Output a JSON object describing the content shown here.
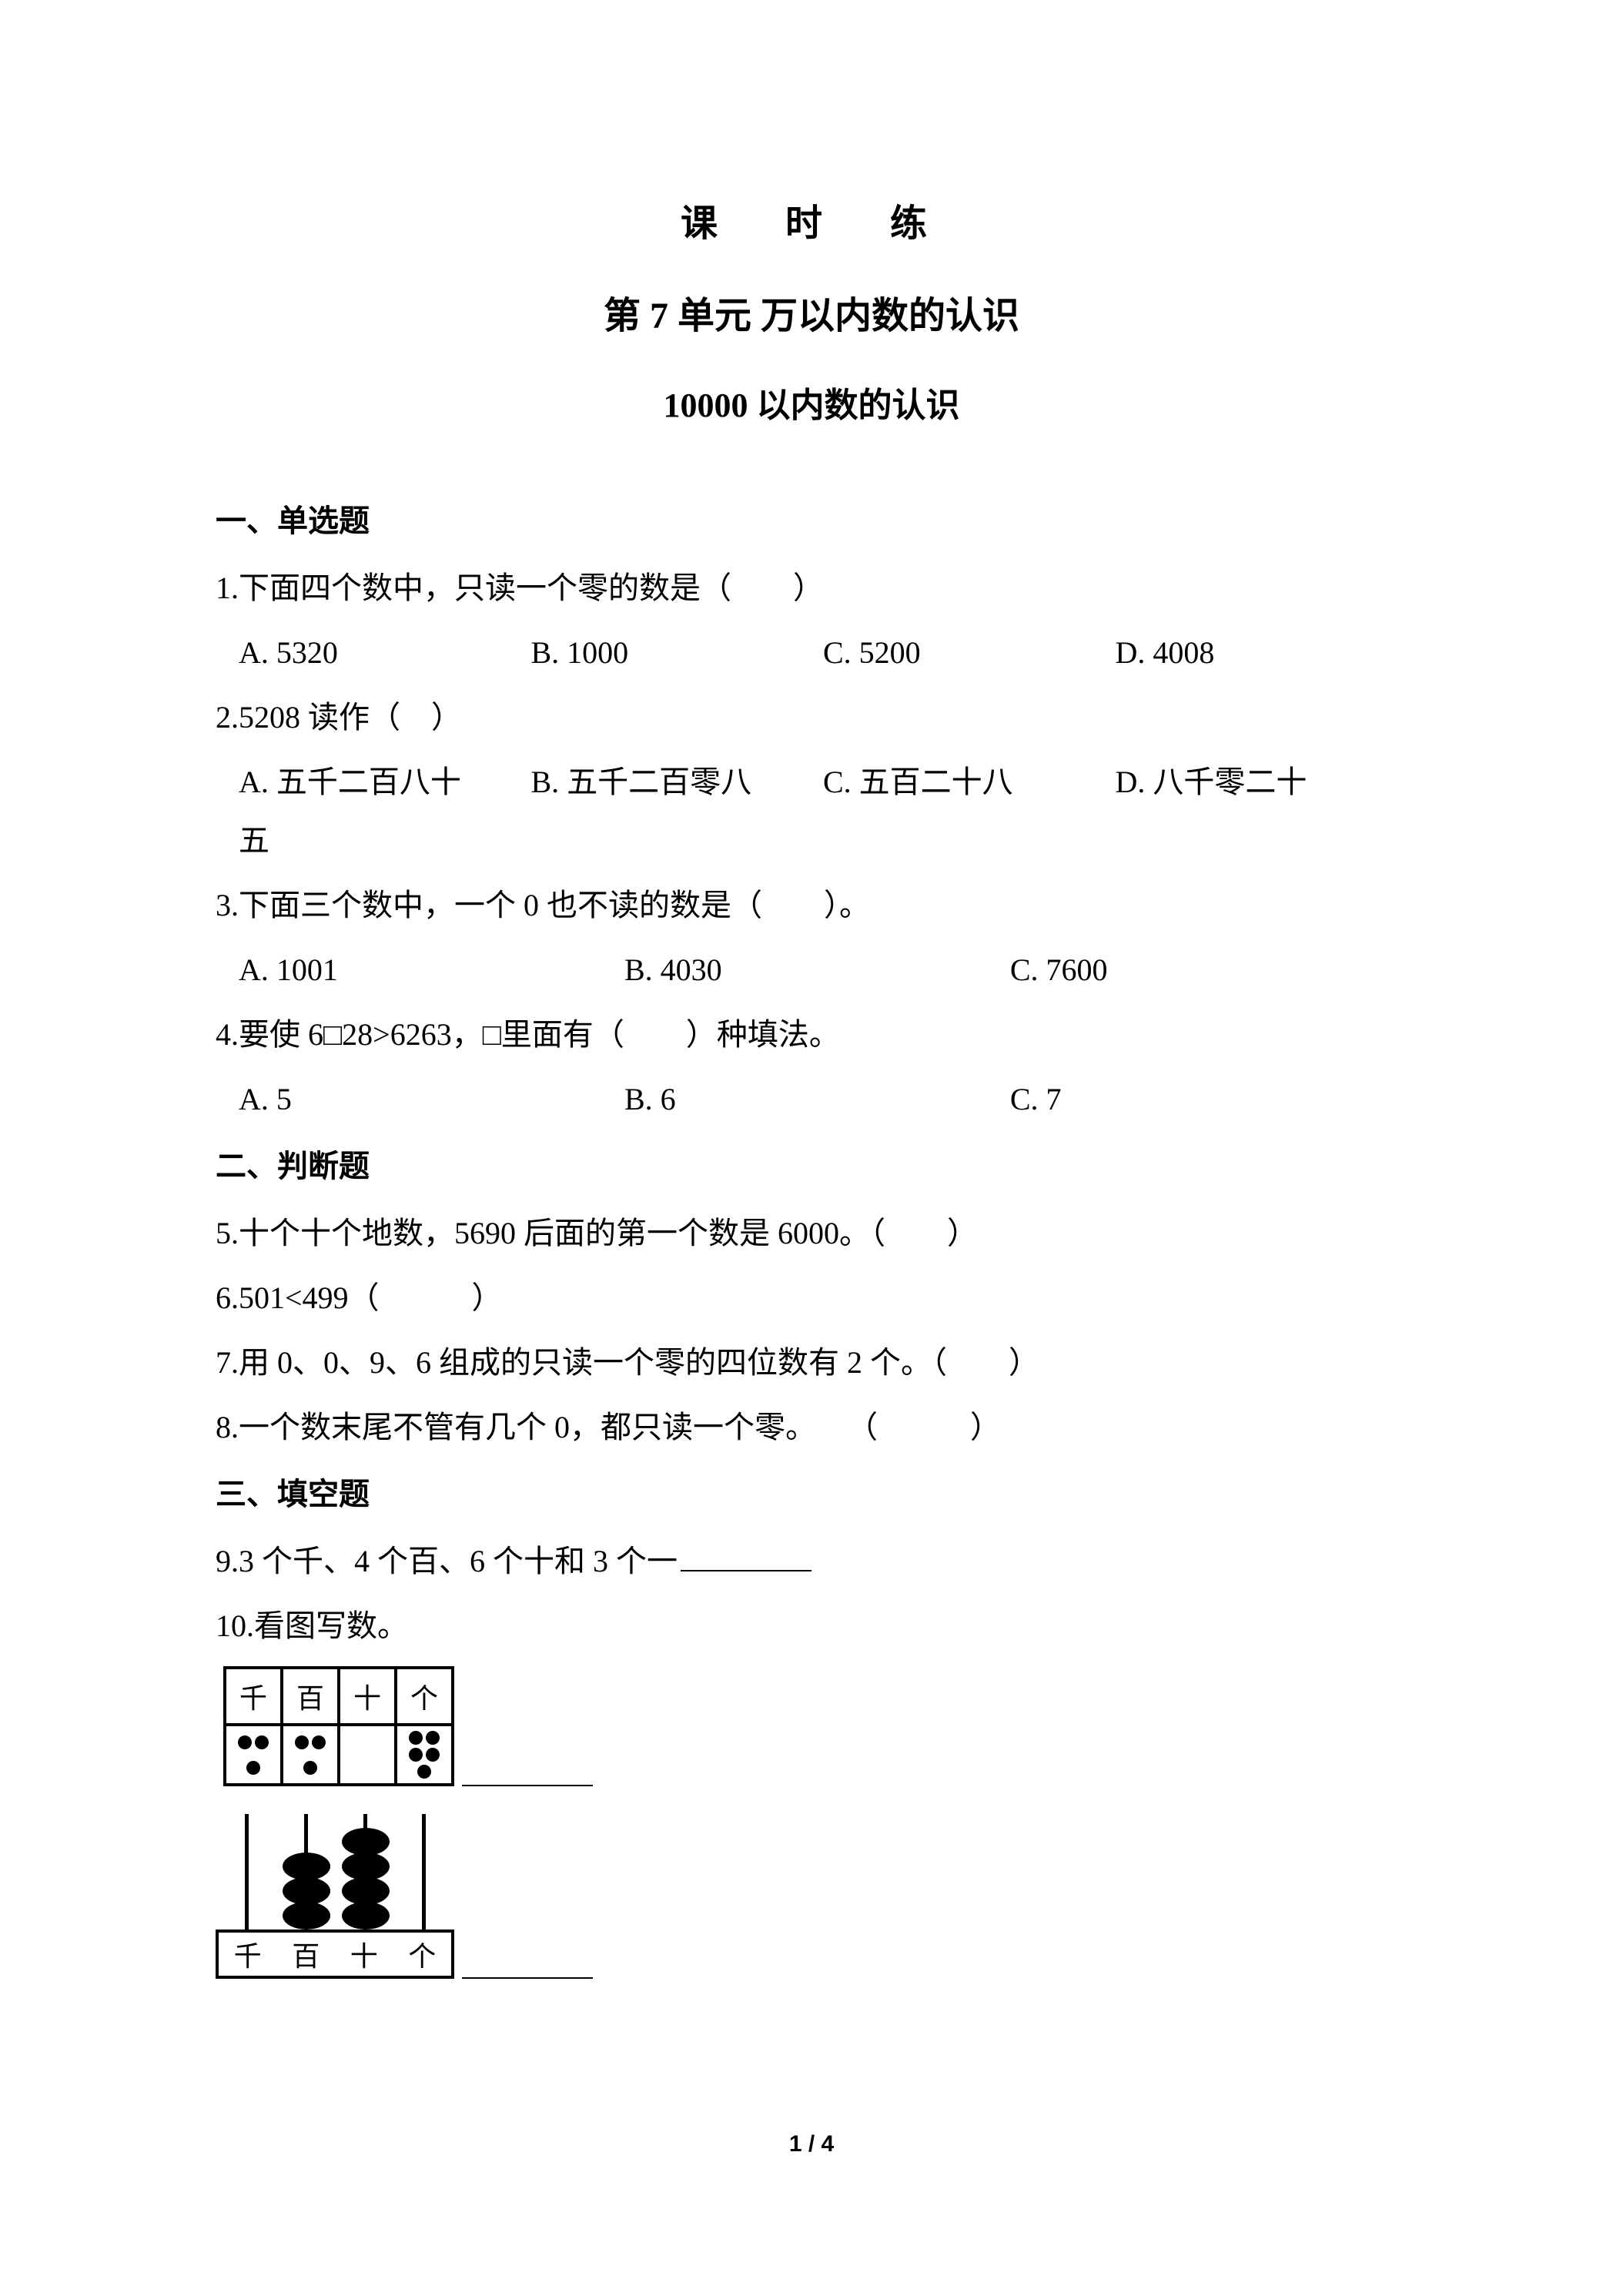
{
  "titles": {
    "main": "课　时　练",
    "unit": "第 7 单元  万以内数的认识",
    "sub": "10000 以内数的认识"
  },
  "sections": {
    "s1": "一、单选题",
    "s2": "二、判断题",
    "s3": "三、填空题"
  },
  "q1": {
    "text": "1.下面四个数中，只读一个零的数是（　　）",
    "a": "A. 5320",
    "b": "B. 1000",
    "c": "C. 5200",
    "d": "D. 4008"
  },
  "q2": {
    "text": "2.5208 读作（　）",
    "a": "A. 五千二百八十",
    "b": "B. 五千二百零八",
    "c": "C. 五百二十八",
    "d": "D. 八千零二十",
    "d2": "五"
  },
  "q3": {
    "text": "3.下面三个数中，一个 0 也不读的数是（　　）。",
    "a": "A. 1001",
    "b": "B. 4030",
    "c": "C. 7600"
  },
  "q4": {
    "text": "4.要使 6□28>6263，□里面有（　　）种填法。",
    "a": "A. 5",
    "b": "B. 6",
    "c": "C. 7"
  },
  "q5": "5.十个十个地数，5690 后面的第一个数是 6000。（　　）",
  "q6": "6.501<499（　　　）",
  "q7": "7.用 0、0、9、6 组成的只读一个零的四位数有 2 个。（　　）",
  "q8": "8.一个数末尾不管有几个 0，都只读一个零。　　（　　　）",
  "q9": "9.3 个千、4  个百、6 个十和 3  个一",
  "q10": "10.看图写数。",
  "placeTable": {
    "headers": [
      "千",
      "百",
      "十",
      "个"
    ],
    "dots": [
      3,
      3,
      0,
      5
    ]
  },
  "abacus": {
    "labels": [
      "千",
      "百",
      "十",
      "个"
    ],
    "beads": [
      0,
      3,
      4,
      0
    ]
  },
  "pageNumber": "1 / 4",
  "colors": {
    "text": "#000000",
    "bg": "#ffffff"
  }
}
